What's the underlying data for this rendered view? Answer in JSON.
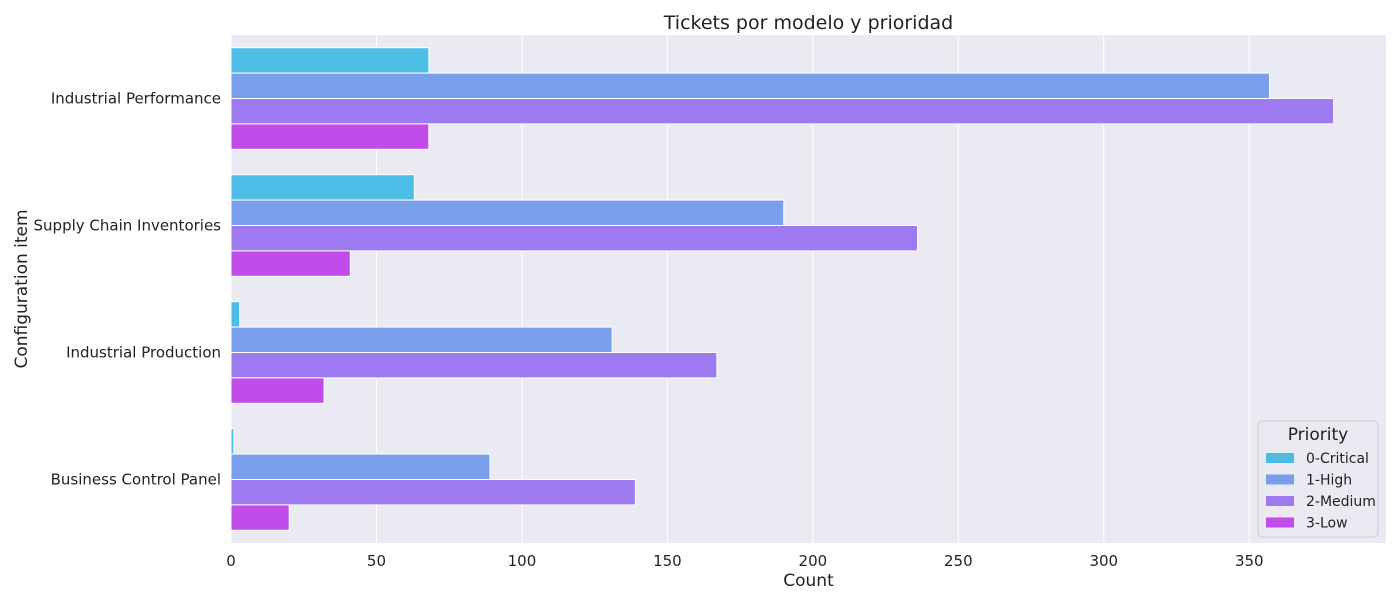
{
  "chart_data": {
    "type": "bar",
    "orientation": "horizontal",
    "title": "Tickets por modelo y prioridad",
    "xlabel": "Count",
    "ylabel": "Configuration item",
    "categories": [
      "Industrial Performance",
      "Supply Chain Inventories",
      "Industrial Production",
      "Business Control Panel"
    ],
    "series": [
      {
        "name": "0-Critical",
        "color": "#4cbee6",
        "values": [
          68,
          63,
          3,
          1
        ]
      },
      {
        "name": "1-High",
        "color": "#7a9fea",
        "values": [
          357,
          190,
          131,
          89
        ]
      },
      {
        "name": "2-Medium",
        "color": "#9e7af0",
        "values": [
          379,
          236,
          167,
          139
        ]
      },
      {
        "name": "3-Low",
        "color": "#c04dea",
        "values": [
          68,
          41,
          32,
          20
        ]
      }
    ],
    "xlim": [
      0,
      397
    ],
    "xticks": [
      0,
      50,
      100,
      150,
      200,
      250,
      300,
      350
    ],
    "grid": true,
    "legend": {
      "title": "Priority",
      "placement": "bottom-right"
    },
    "background": "#eaeaf2"
  }
}
